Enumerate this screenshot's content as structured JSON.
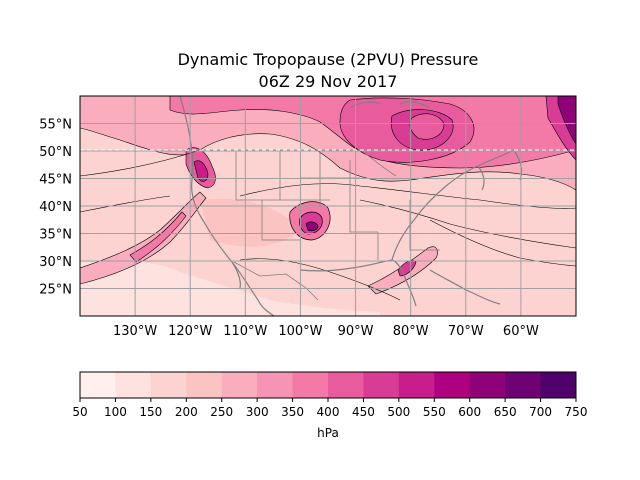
{
  "chart_data": {
    "type": "heatmap",
    "title": "Dynamic Tropopause (2PVU) Pressure",
    "subtitle": "06Z 29 Nov 2017",
    "lat_ticks": [
      {
        "value": 55,
        "label": "55°N"
      },
      {
        "value": 50,
        "label": "50°N"
      },
      {
        "value": 45,
        "label": "45°N"
      },
      {
        "value": 40,
        "label": "40°N"
      },
      {
        "value": 35,
        "label": "35°N"
      },
      {
        "value": 30,
        "label": "30°N"
      },
      {
        "value": 25,
        "label": "25°N"
      }
    ],
    "lon_ticks": [
      {
        "value": -130,
        "label": "130°W"
      },
      {
        "value": -120,
        "label": "120°W"
      },
      {
        "value": -110,
        "label": "110°W"
      },
      {
        "value": -100,
        "label": "100°W"
      },
      {
        "value": -90,
        "label": "90°W"
      },
      {
        "value": -80,
        "label": "80°W"
      },
      {
        "value": -70,
        "label": "70°W"
      },
      {
        "value": -60,
        "label": "60°W"
      }
    ],
    "lon_range": [
      -140,
      -50
    ],
    "lat_range": [
      20,
      60
    ],
    "grid": true,
    "colorbar": {
      "label": "hPa",
      "levels": [
        50,
        100,
        150,
        200,
        250,
        300,
        350,
        400,
        450,
        500,
        550,
        600,
        650,
        700,
        750
      ],
      "colors": [
        "#fff0ee",
        "#fde2e0",
        "#fcd3d1",
        "#fbc4c2",
        "#f9adbd",
        "#f694b5",
        "#f379a7",
        "#e85c9d",
        "#d83c94",
        "#c91d8b",
        "#ad0180",
        "#8e0179",
        "#6e0174",
        "#4f006a"
      ]
    }
  }
}
